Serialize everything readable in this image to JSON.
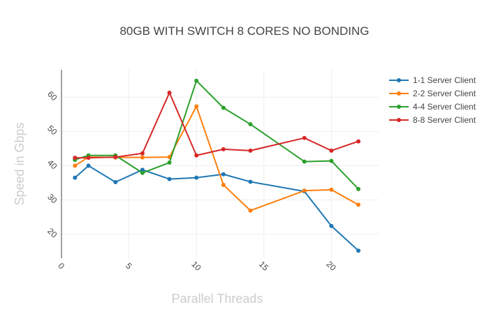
{
  "chart_data": {
    "type": "line",
    "title": "80GB WITH SWITCH 8 CORES NO BONDING",
    "xlabel": "Parallel Threads",
    "ylabel": "Speed in Gbps",
    "xlim": [
      0,
      23.5
    ],
    "ylim": [
      13,
      68
    ],
    "x_ticks": [
      0,
      5,
      10,
      15,
      20
    ],
    "y_ticks": [
      20,
      30,
      40,
      50,
      60
    ],
    "grid": true,
    "legend_position": "top-right",
    "colors": {
      "title": "#444444",
      "axis_title": "#cccccc",
      "grid": "#eeeeee",
      "axis_line": "#444444"
    },
    "x": [
      1,
      2,
      4,
      6,
      8,
      10,
      12,
      14,
      18,
      20,
      22
    ],
    "series": [
      {
        "name": "1-1 Server Client",
        "color": "#1f77b4",
        "values": [
          36.5,
          40,
          35.2,
          38.8,
          36.1,
          36.5,
          37.5,
          35.3,
          32.5,
          22.4,
          15.2
        ]
      },
      {
        "name": "2-2 Server Client",
        "color": "#ff7f0e",
        "values": [
          40,
          42.5,
          42.4,
          42.4,
          42.5,
          57.3,
          34.4,
          26.9,
          32.7,
          33,
          28.6
        ]
      },
      {
        "name": "4-4 Server Client",
        "color": "#2ca02c",
        "values": [
          41.7,
          43,
          43,
          37.9,
          40.9,
          64.8,
          56.9,
          52.1,
          41.2,
          41.4,
          33.2
        ]
      },
      {
        "name": "8-8 Server Client",
        "color": "#d62728",
        "values": [
          42.3,
          42.3,
          42.5,
          43.6,
          61.3,
          43,
          44.8,
          44.4,
          48.1,
          44.4,
          47.1
        ]
      }
    ]
  }
}
